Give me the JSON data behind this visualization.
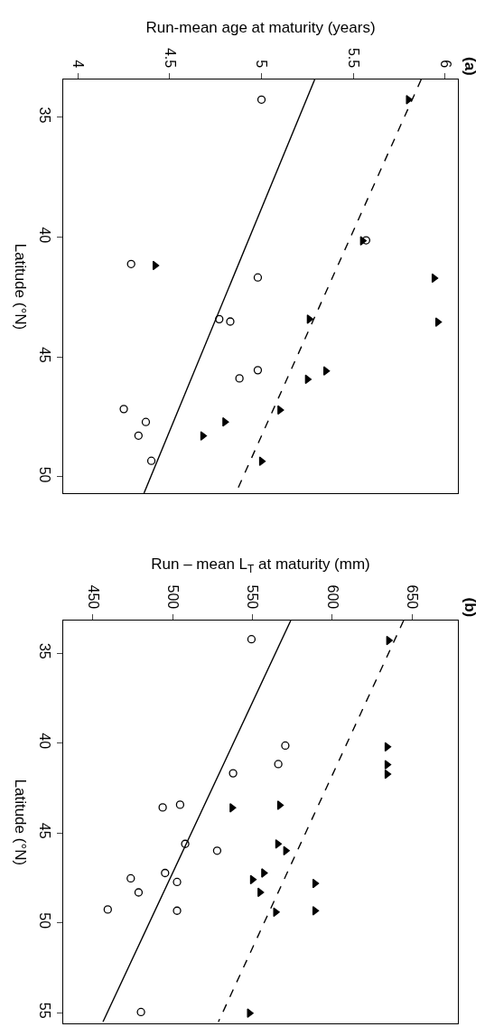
{
  "chart_data": [
    {
      "type": "scatter",
      "xlabel": "Run-mean age at maturity (years)",
      "ylabel": "Latitude (°N)",
      "annotations": [
        "(a)"
      ],
      "ylim": [
        50.68,
        33.42
      ],
      "yticks": [
        35,
        40,
        45,
        50
      ],
      "xlim": [
        3.92,
        6.07
      ],
      "xticks": [
        4,
        4.5,
        5,
        5.5,
        6
      ],
      "grid": false,
      "series": [
        {
          "type": "scatter",
          "marker": "circle",
          "color": "#000000",
          "x": [
            5.0,
            5.57,
            4.29,
            4.98,
            4.77,
            4.83,
            4.98,
            4.88,
            4.25,
            4.37,
            4.33,
            4.4
          ],
          "values": [
            34.26,
            40.13,
            41.12,
            41.68,
            43.42,
            43.52,
            45.55,
            45.89,
            47.17,
            47.71,
            48.28,
            49.33
          ]
        },
        {
          "type": "scatter",
          "marker": "triangle",
          "color": "#000000",
          "x": [
            5.8,
            5.55,
            4.42,
            5.94,
            5.96,
            5.26,
            5.35,
            5.25,
            5.1,
            4.8,
            4.68,
            5.0
          ],
          "values": [
            34.26,
            40.15,
            41.18,
            41.71,
            43.54,
            43.42,
            45.58,
            45.93,
            47.21,
            47.71,
            48.29,
            49.35
          ]
        },
        {
          "type": "line",
          "line_style": "solid",
          "color": "#000000",
          "x": [
            5.29,
            4.36
          ],
          "values": [
            33.42,
            50.68
          ]
        },
        {
          "type": "line",
          "line_style": "dashed",
          "color": "#000000",
          "x": [
            5.87,
            4.86
          ],
          "values": [
            33.42,
            50.68
          ]
        }
      ]
    },
    {
      "type": "scatter",
      "xlabel": "Run – mean L$_{T}$ at maturity (mm)",
      "ylabel": "Latitude (°N)",
      "annotations": [
        "(b)"
      ],
      "ylim": [
        55.6,
        33.18
      ],
      "yticks": [
        35,
        40,
        45,
        50,
        55
      ],
      "xlim": [
        431.5,
        678.7
      ],
      "xticks": [
        450,
        500,
        550,
        600,
        650
      ],
      "grid": false,
      "series": [
        {
          "type": "scatter",
          "marker": "circle",
          "color": "#000000",
          "x": [
            549.4,
            570.6,
            566.2,
            537.9,
            504.7,
            493.8,
            507.9,
            527.9,
            495.3,
            473.8,
            502.8,
            478.7,
            459.4,
            502.8,
            480.2
          ],
          "values": [
            34.22,
            40.14,
            41.17,
            41.68,
            43.43,
            43.58,
            45.61,
            45.99,
            47.23,
            47.53,
            47.73,
            48.31,
            49.26,
            49.33,
            54.97
          ]
        },
        {
          "type": "scatter",
          "marker": "triangle",
          "color": "#000000",
          "x": [
            635.3,
            634.3,
            634.3,
            634.3,
            537.2,
            567.0,
            565.8,
            570.8,
            557.0,
            550.0,
            589.1,
            554.7,
            564.5,
            589.1,
            548.1
          ],
          "values": [
            34.29,
            40.21,
            41.2,
            41.73,
            43.6,
            43.46,
            45.61,
            45.99,
            47.23,
            47.6,
            47.81,
            48.31,
            49.41,
            49.33,
            55.03
          ]
        },
        {
          "type": "line",
          "line_style": "solid",
          "color": "#000000",
          "x": [
            574.0,
            456.4
          ],
          "values": [
            33.18,
            55.51
          ]
        },
        {
          "type": "line",
          "line_style": "dashed",
          "color": "#000000",
          "x": [
            644.7,
            528.7
          ],
          "values": [
            33.18,
            55.51
          ]
        }
      ]
    }
  ]
}
